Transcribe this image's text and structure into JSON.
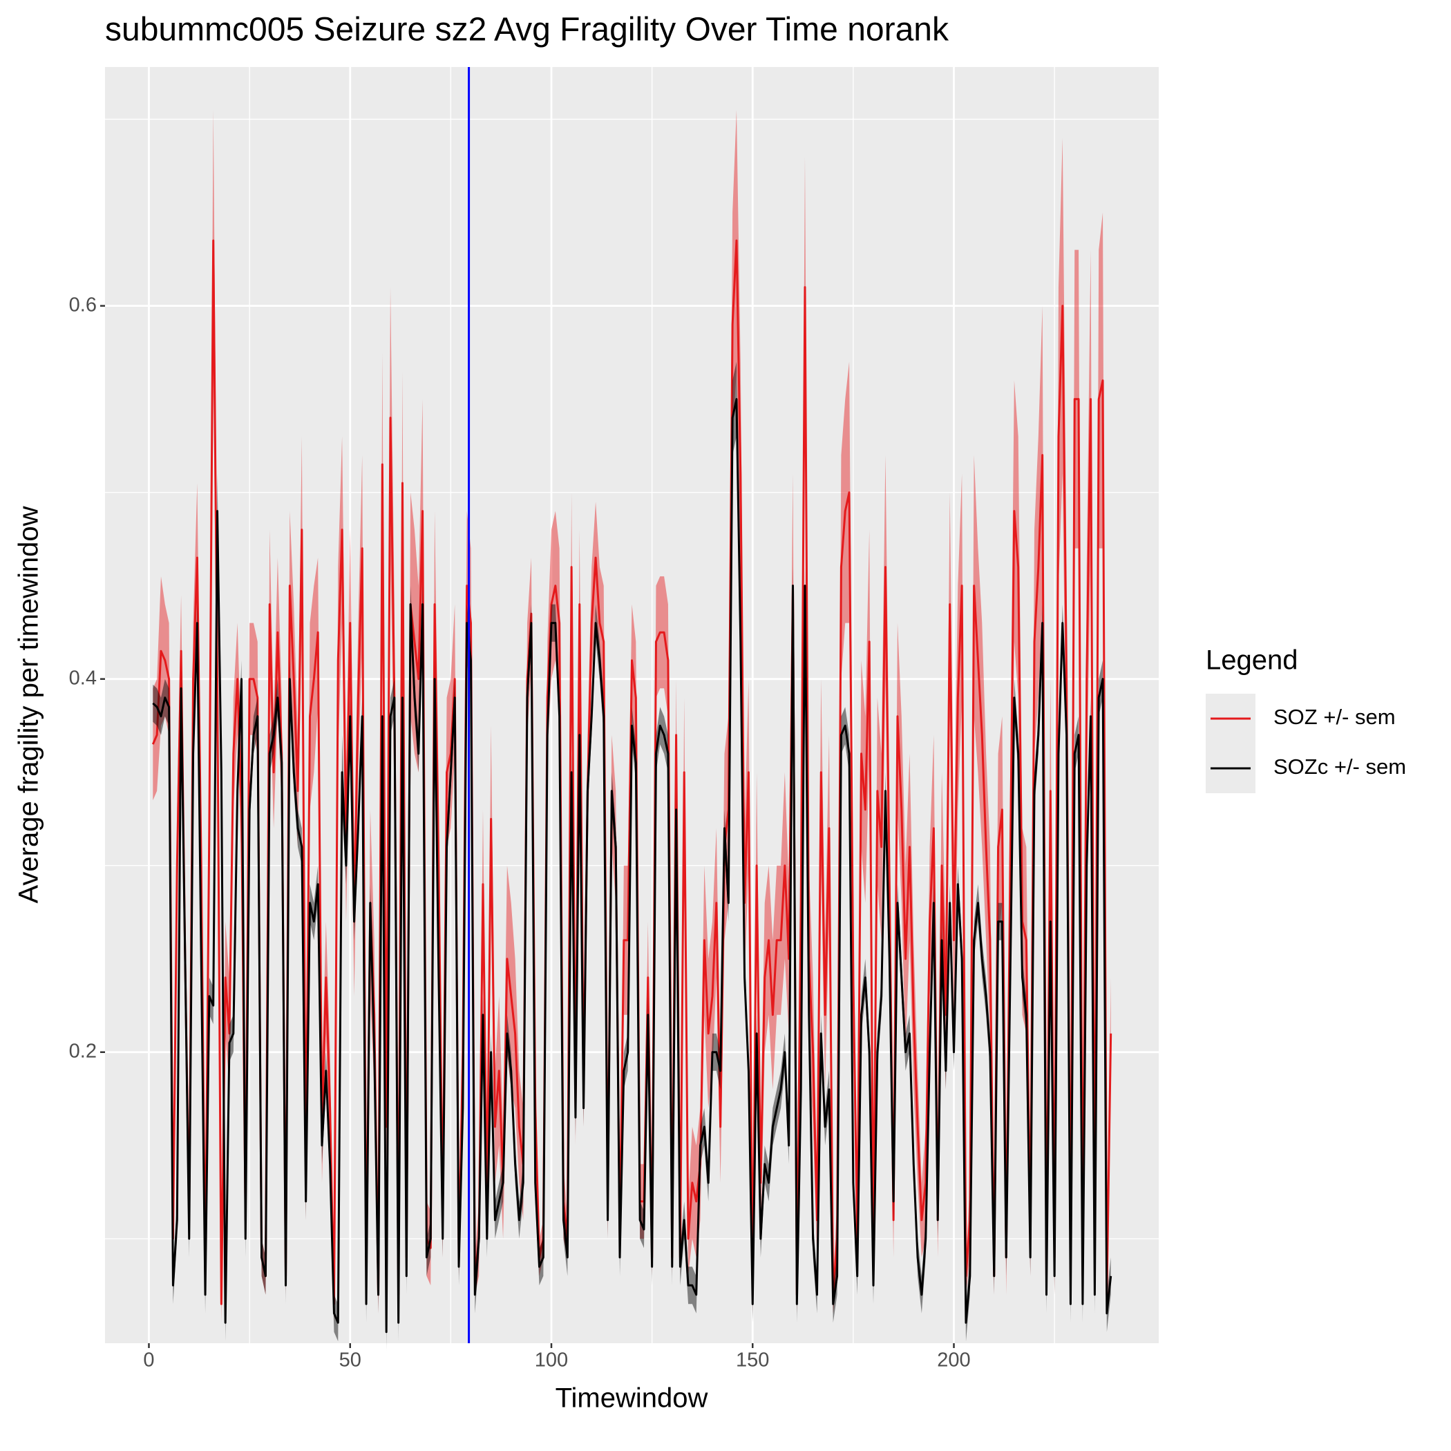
{
  "chart_data": {
    "type": "line",
    "title": "subummc005 Seizure sz2 Avg Fragility Over Time norank",
    "x_label": "Timewindow",
    "y_label": "Average fragility per timewindow",
    "legend_title": "Legend",
    "legend_position": "right",
    "xlim": [
      -10.9,
      250.9
    ],
    "xticks": [
      0,
      50,
      100,
      150,
      200
    ],
    "x_minor_grid": [
      25,
      75,
      125,
      175,
      225
    ],
    "ylim": [
      0.044,
      0.728
    ],
    "yticks": [
      0.2,
      0.4,
      0.6
    ],
    "y_minor_grid": [
      0.1,
      0.3,
      0.5,
      0.7
    ],
    "grid": true,
    "vline": {
      "x": 79.5,
      "color": "#0000ff"
    },
    "ribbon_opacity": 0.45,
    "x": [
      1,
      2,
      3,
      4,
      5,
      6,
      7,
      8,
      9,
      10,
      11,
      12,
      13,
      14,
      15,
      16,
      17,
      18,
      19,
      20,
      21,
      22,
      23,
      24,
      25,
      26,
      27,
      28,
      29,
      30,
      31,
      32,
      33,
      34,
      35,
      36,
      37,
      38,
      39,
      40,
      41,
      42,
      43,
      44,
      45,
      46,
      47,
      48,
      49,
      50,
      51,
      52,
      53,
      54,
      55,
      56,
      57,
      58,
      59,
      60,
      61,
      62,
      63,
      64,
      65,
      66,
      67,
      68,
      69,
      70,
      71,
      72,
      73,
      74,
      75,
      76,
      77,
      78,
      79,
      80,
      81,
      82,
      83,
      84,
      85,
      86,
      87,
      88,
      89,
      90,
      91,
      92,
      93,
      94,
      95,
      96,
      97,
      98,
      99,
      100,
      101,
      102,
      103,
      104,
      105,
      106,
      107,
      108,
      109,
      110,
      111,
      112,
      113,
      114,
      115,
      116,
      117,
      118,
      119,
      120,
      121,
      122,
      123,
      124,
      125,
      126,
      127,
      128,
      129,
      130,
      131,
      132,
      133,
      134,
      135,
      136,
      137,
      138,
      139,
      140,
      141,
      142,
      143,
      144,
      145,
      146,
      147,
      148,
      149,
      150,
      151,
      152,
      153,
      154,
      155,
      156,
      157,
      158,
      159,
      160,
      161,
      162,
      163,
      164,
      165,
      166,
      167,
      168,
      169,
      170,
      171,
      172,
      173,
      174,
      175,
      176,
      177,
      178,
      179,
      180,
      181,
      182,
      183,
      184,
      185,
      186,
      187,
      188,
      189,
      190,
      191,
      192,
      193,
      194,
      195,
      196,
      197,
      198,
      199,
      200,
      201,
      202,
      203,
      204,
      205,
      206,
      207,
      208,
      209,
      210,
      211,
      212,
      213,
      214,
      215,
      216,
      217,
      218,
      219,
      220,
      221,
      222,
      223,
      224,
      225,
      226,
      227,
      228,
      229,
      230,
      231,
      232,
      233,
      234,
      235,
      236,
      237,
      238,
      239
    ],
    "series": [
      {
        "name": "SOZ +/- sem",
        "color": "#e41a1c",
        "values": [
          0.365,
          0.37,
          0.415,
          0.41,
          0.4,
          0.1,
          0.3,
          0.415,
          0.25,
          0.11,
          0.4,
          0.465,
          0.3,
          0.08,
          0.32,
          0.635,
          0.4,
          0.065,
          0.24,
          0.21,
          0.36,
          0.4,
          0.33,
          0.11,
          0.4,
          0.4,
          0.39,
          0.09,
          0.08,
          0.44,
          0.35,
          0.425,
          0.36,
          0.08,
          0.45,
          0.4,
          0.34,
          0.48,
          0.13,
          0.38,
          0.4,
          0.425,
          0.16,
          0.24,
          0.17,
          0.065,
          0.41,
          0.48,
          0.31,
          0.43,
          0.27,
          0.39,
          0.47,
          0.08,
          0.28,
          0.22,
          0.07,
          0.515,
          0.16,
          0.54,
          0.39,
          0.07,
          0.505,
          0.09,
          0.44,
          0.42,
          0.4,
          0.49,
          0.1,
          0.095,
          0.44,
          0.3,
          0.11,
          0.35,
          0.36,
          0.4,
          0.09,
          0.2,
          0.45,
          0.43,
          0.08,
          0.1,
          0.29,
          0.12,
          0.325,
          0.16,
          0.19,
          0.13,
          0.25,
          0.23,
          0.21,
          0.16,
          0.14,
          0.4,
          0.435,
          0.17,
          0.09,
          0.1,
          0.39,
          0.44,
          0.45,
          0.43,
          0.12,
          0.1,
          0.46,
          0.17,
          0.44,
          0.18,
          0.34,
          0.43,
          0.465,
          0.43,
          0.42,
          0.12,
          0.34,
          0.31,
          0.1,
          0.26,
          0.26,
          0.41,
          0.39,
          0.12,
          0.12,
          0.24,
          0.09,
          0.42,
          0.425,
          0.425,
          0.41,
          0.09,
          0.37,
          0.09,
          0.35,
          0.1,
          0.13,
          0.12,
          0.14,
          0.26,
          0.21,
          0.23,
          0.28,
          0.16,
          0.31,
          0.33,
          0.59,
          0.635,
          0.51,
          0.28,
          0.35,
          0.07,
          0.3,
          0.13,
          0.24,
          0.26,
          0.22,
          0.26,
          0.26,
          0.3,
          0.25,
          0.45,
          0.07,
          0.28,
          0.61,
          0.25,
          0.2,
          0.11,
          0.35,
          0.22,
          0.32,
          0.07,
          0.1,
          0.46,
          0.49,
          0.5,
          0.24,
          0.1,
          0.36,
          0.33,
          0.42,
          0.09,
          0.34,
          0.31,
          0.46,
          0.29,
          0.11,
          0.38,
          0.33,
          0.25,
          0.31,
          0.22,
          0.16,
          0.11,
          0.13,
          0.27,
          0.32,
          0.11,
          0.3,
          0.22,
          0.44,
          0.26,
          0.39,
          0.45,
          0.08,
          0.11,
          0.45,
          0.41,
          0.37,
          0.31,
          0.26,
          0.08,
          0.31,
          0.33,
          0.09,
          0.3,
          0.49,
          0.46,
          0.27,
          0.26,
          0.1,
          0.42,
          0.46,
          0.52,
          0.08,
          0.34,
          0.09,
          0.53,
          0.6,
          0.4,
          0.08,
          0.55,
          0.55,
          0.08,
          0.4,
          0.55,
          0.09,
          0.55,
          0.56,
          0.07,
          0.21
        ],
        "sem": [
          0.03,
          0.03,
          0.04,
          0.03,
          0.03,
          0.01,
          0.03,
          0.03,
          0.03,
          0.01,
          0.03,
          0.04,
          0.03,
          0.01,
          0.04,
          0.07,
          0.04,
          0.01,
          0.03,
          0.03,
          0.03,
          0.03,
          0.03,
          0.01,
          0.03,
          0.03,
          0.03,
          0.01,
          0.01,
          0.04,
          0.03,
          0.04,
          0.03,
          0.01,
          0.04,
          0.04,
          0.03,
          0.05,
          0.02,
          0.05,
          0.05,
          0.04,
          0.03,
          0.03,
          0.03,
          0.01,
          0.05,
          0.05,
          0.04,
          0.05,
          0.04,
          0.04,
          0.05,
          0.01,
          0.05,
          0.04,
          0.01,
          0.06,
          0.02,
          0.07,
          0.05,
          0.01,
          0.06,
          0.01,
          0.06,
          0.06,
          0.05,
          0.06,
          0.02,
          0.02,
          0.05,
          0.04,
          0.02,
          0.04,
          0.04,
          0.04,
          0.01,
          0.03,
          0.04,
          0.04,
          0.01,
          0.02,
          0.04,
          0.02,
          0.05,
          0.03,
          0.04,
          0.03,
          0.05,
          0.05,
          0.04,
          0.03,
          0.03,
          0.03,
          0.03,
          0.03,
          0.01,
          0.01,
          0.03,
          0.04,
          0.04,
          0.04,
          0.02,
          0.01,
          0.04,
          0.02,
          0.04,
          0.02,
          0.03,
          0.03,
          0.03,
          0.03,
          0.03,
          0.02,
          0.03,
          0.03,
          0.01,
          0.04,
          0.04,
          0.03,
          0.03,
          0.02,
          0.02,
          0.03,
          0.01,
          0.03,
          0.03,
          0.03,
          0.03,
          0.01,
          0.03,
          0.01,
          0.04,
          0.02,
          0.03,
          0.03,
          0.03,
          0.04,
          0.04,
          0.04,
          0.04,
          0.03,
          0.05,
          0.05,
          0.06,
          0.07,
          0.06,
          0.04,
          0.05,
          0.01,
          0.05,
          0.03,
          0.04,
          0.04,
          0.04,
          0.04,
          0.04,
          0.05,
          0.04,
          0.06,
          0.01,
          0.05,
          0.07,
          0.05,
          0.04,
          0.02,
          0.05,
          0.04,
          0.05,
          0.01,
          0.02,
          0.06,
          0.06,
          0.07,
          0.04,
          0.02,
          0.05,
          0.05,
          0.06,
          0.01,
          0.05,
          0.05,
          0.06,
          0.05,
          0.02,
          0.05,
          0.05,
          0.05,
          0.05,
          0.04,
          0.03,
          0.02,
          0.03,
          0.04,
          0.05,
          0.02,
          0.05,
          0.04,
          0.06,
          0.05,
          0.06,
          0.06,
          0.01,
          0.02,
          0.07,
          0.06,
          0.06,
          0.05,
          0.05,
          0.01,
          0.05,
          0.05,
          0.02,
          0.05,
          0.07,
          0.07,
          0.05,
          0.05,
          0.02,
          0.06,
          0.07,
          0.08,
          0.01,
          0.06,
          0.02,
          0.08,
          0.09,
          0.06,
          0.01,
          0.08,
          0.08,
          0.01,
          0.06,
          0.08,
          0.02,
          0.08,
          0.09,
          0.01,
          0.03
        ]
      },
      {
        "name": "SOZc +/- sem",
        "color": "#000000",
        "values": [
          0.387,
          0.385,
          0.38,
          0.39,
          0.385,
          0.075,
          0.11,
          0.395,
          0.25,
          0.1,
          0.36,
          0.43,
          0.25,
          0.07,
          0.23,
          0.225,
          0.49,
          0.35,
          0.055,
          0.205,
          0.21,
          0.34,
          0.4,
          0.1,
          0.33,
          0.37,
          0.38,
          0.09,
          0.08,
          0.36,
          0.37,
          0.39,
          0.355,
          0.075,
          0.4,
          0.35,
          0.32,
          0.31,
          0.12,
          0.28,
          0.27,
          0.29,
          0.15,
          0.19,
          0.14,
          0.06,
          0.055,
          0.35,
          0.3,
          0.38,
          0.27,
          0.32,
          0.38,
          0.065,
          0.28,
          0.2,
          0.07,
          0.38,
          0.05,
          0.38,
          0.39,
          0.055,
          0.39,
          0.08,
          0.44,
          0.39,
          0.36,
          0.44,
          0.09,
          0.1,
          0.4,
          0.24,
          0.1,
          0.31,
          0.35,
          0.39,
          0.085,
          0.17,
          0.43,
          0.41,
          0.07,
          0.1,
          0.22,
          0.1,
          0.2,
          0.11,
          0.12,
          0.13,
          0.21,
          0.19,
          0.14,
          0.11,
          0.13,
          0.39,
          0.43,
          0.13,
          0.085,
          0.09,
          0.37,
          0.43,
          0.43,
          0.38,
          0.11,
          0.09,
          0.35,
          0.165,
          0.37,
          0.17,
          0.34,
          0.38,
          0.43,
          0.41,
          0.38,
          0.11,
          0.34,
          0.31,
          0.09,
          0.19,
          0.2,
          0.375,
          0.355,
          0.11,
          0.105,
          0.22,
          0.085,
          0.36,
          0.375,
          0.37,
          0.36,
          0.085,
          0.33,
          0.085,
          0.11,
          0.075,
          0.075,
          0.07,
          0.15,
          0.16,
          0.13,
          0.2,
          0.2,
          0.19,
          0.32,
          0.28,
          0.54,
          0.55,
          0.42,
          0.24,
          0.19,
          0.065,
          0.21,
          0.1,
          0.14,
          0.13,
          0.16,
          0.17,
          0.18,
          0.2,
          0.15,
          0.45,
          0.065,
          0.18,
          0.45,
          0.22,
          0.1,
          0.07,
          0.21,
          0.16,
          0.18,
          0.065,
          0.08,
          0.37,
          0.375,
          0.36,
          0.13,
          0.08,
          0.22,
          0.24,
          0.2,
          0.075,
          0.2,
          0.23,
          0.34,
          0.25,
          0.12,
          0.28,
          0.24,
          0.2,
          0.21,
          0.14,
          0.09,
          0.07,
          0.1,
          0.2,
          0.28,
          0.11,
          0.26,
          0.19,
          0.28,
          0.2,
          0.29,
          0.25,
          0.055,
          0.08,
          0.26,
          0.28,
          0.25,
          0.23,
          0.2,
          0.08,
          0.27,
          0.27,
          0.09,
          0.24,
          0.39,
          0.36,
          0.24,
          0.22,
          0.09,
          0.34,
          0.37,
          0.43,
          0.07,
          0.27,
          0.08,
          0.36,
          0.43,
          0.37,
          0.065,
          0.36,
          0.37,
          0.065,
          0.3,
          0.38,
          0.07,
          0.39,
          0.4,
          0.06,
          0.08
        ],
        "sem": [
          0.01,
          0.01,
          0.01,
          0.01,
          0.01,
          0.01,
          0.01,
          0.01,
          0.01,
          0.01,
          0.01,
          0.01,
          0.01,
          0.01,
          0.01,
          0.01,
          0.02,
          0.01,
          0.01,
          0.01,
          0.01,
          0.01,
          0.01,
          0.01,
          0.01,
          0.01,
          0.01,
          0.01,
          0.01,
          0.01,
          0.01,
          0.01,
          0.01,
          0.01,
          0.01,
          0.01,
          0.01,
          0.01,
          0.01,
          0.01,
          0.01,
          0.01,
          0.01,
          0.01,
          0.01,
          0.01,
          0.01,
          0.02,
          0.01,
          0.01,
          0.01,
          0.01,
          0.01,
          0.01,
          0.01,
          0.01,
          0.01,
          0.01,
          0.01,
          0.01,
          0.01,
          0.01,
          0.01,
          0.01,
          0.01,
          0.01,
          0.01,
          0.01,
          0.01,
          0.01,
          0.01,
          0.01,
          0.01,
          0.01,
          0.01,
          0.01,
          0.01,
          0.01,
          0.01,
          0.01,
          0.01,
          0.01,
          0.01,
          0.01,
          0.01,
          0.01,
          0.01,
          0.01,
          0.01,
          0.01,
          0.01,
          0.01,
          0.01,
          0.01,
          0.01,
          0.01,
          0.01,
          0.01,
          0.01,
          0.01,
          0.01,
          0.01,
          0.01,
          0.01,
          0.01,
          0.01,
          0.01,
          0.01,
          0.01,
          0.01,
          0.01,
          0.01,
          0.01,
          0.01,
          0.01,
          0.01,
          0.01,
          0.01,
          0.01,
          0.01,
          0.01,
          0.01,
          0.01,
          0.01,
          0.01,
          0.01,
          0.01,
          0.01,
          0.01,
          0.01,
          0.01,
          0.01,
          0.01,
          0.01,
          0.01,
          0.01,
          0.01,
          0.01,
          0.01,
          0.01,
          0.01,
          0.01,
          0.01,
          0.01,
          0.02,
          0.02,
          0.02,
          0.01,
          0.01,
          0.01,
          0.01,
          0.01,
          0.01,
          0.01,
          0.01,
          0.01,
          0.01,
          0.01,
          0.01,
          0.01,
          0.01,
          0.01,
          0.01,
          0.01,
          0.01,
          0.01,
          0.01,
          0.01,
          0.01,
          0.01,
          0.01,
          0.01,
          0.01,
          0.01,
          0.01,
          0.01,
          0.01,
          0.01,
          0.01,
          0.01,
          0.01,
          0.01,
          0.01,
          0.01,
          0.01,
          0.01,
          0.01,
          0.01,
          0.01,
          0.01,
          0.01,
          0.01,
          0.01,
          0.01,
          0.01,
          0.01,
          0.01,
          0.01,
          0.01,
          0.01,
          0.01,
          0.01,
          0.01,
          0.01,
          0.01,
          0.01,
          0.01,
          0.01,
          0.01,
          0.01,
          0.01,
          0.01,
          0.01,
          0.01,
          0.01,
          0.01,
          0.01,
          0.01,
          0.01,
          0.01,
          0.01,
          0.01,
          0.01,
          0.01,
          0.01,
          0.01,
          0.01,
          0.01,
          0.01,
          0.01,
          0.01,
          0.01,
          0.01,
          0.01,
          0.01,
          0.01,
          0.01,
          0.01,
          0.01
        ]
      }
    ]
  }
}
